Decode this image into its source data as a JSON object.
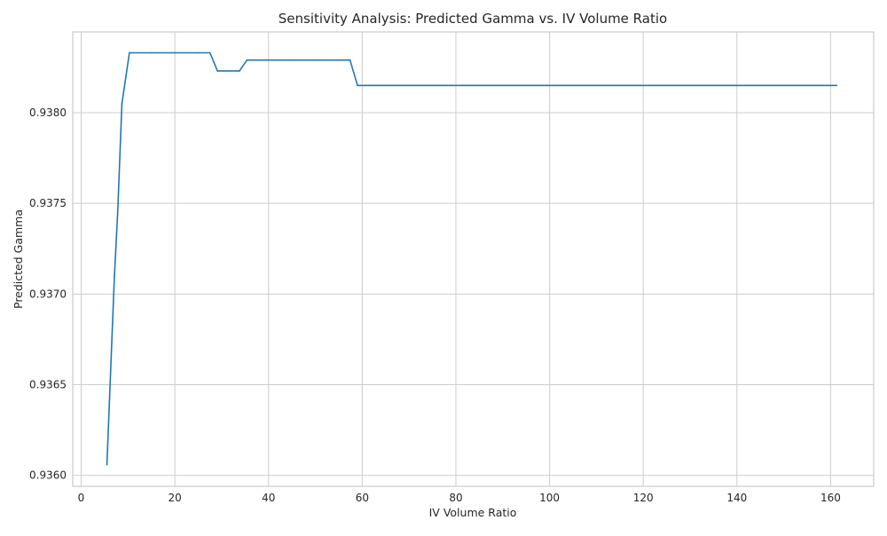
{
  "chart_data": {
    "type": "line",
    "title": "Sensitivity Analysis: Predicted Gamma vs. IV Volume Ratio",
    "xlabel": "IV Volume Ratio",
    "ylabel": "Predicted Gamma",
    "xlim": [
      -1.8,
      169.2
    ],
    "ylim": [
      0.93594,
      0.938445
    ],
    "xticks": [
      0,
      20,
      40,
      60,
      80,
      100,
      120,
      140,
      160
    ],
    "xtick_labels": [
      "0",
      "20",
      "40",
      "60",
      "80",
      "100",
      "120",
      "140",
      "160"
    ],
    "yticks": [
      0.936,
      0.9365,
      0.937,
      0.9375,
      0.938
    ],
    "ytick_labels": [
      "0.9360",
      "0.9365",
      "0.9370",
      "0.9375",
      "0.9380"
    ],
    "grid": true,
    "series": [
      {
        "color": "#1f77b4",
        "x": [
          5.5,
          7.1,
          7.8,
          8.7,
          10.3,
          15,
          20,
          25,
          27.5,
          29.1,
          33.8,
          35.4,
          40,
          45,
          50,
          55,
          57.4,
          59,
          70,
          80,
          90,
          100,
          110,
          120,
          130,
          140,
          150,
          161.3
        ],
        "y": [
          0.93606,
          0.9371,
          0.93745,
          0.93805,
          0.93833,
          0.93833,
          0.93833,
          0.93833,
          0.93833,
          0.93823,
          0.93823,
          0.93829,
          0.93829,
          0.93829,
          0.93829,
          0.93829,
          0.93829,
          0.93815,
          0.93815,
          0.93815,
          0.93815,
          0.93815,
          0.93815,
          0.93815,
          0.93815,
          0.93815,
          0.93815,
          0.93815
        ]
      }
    ]
  }
}
